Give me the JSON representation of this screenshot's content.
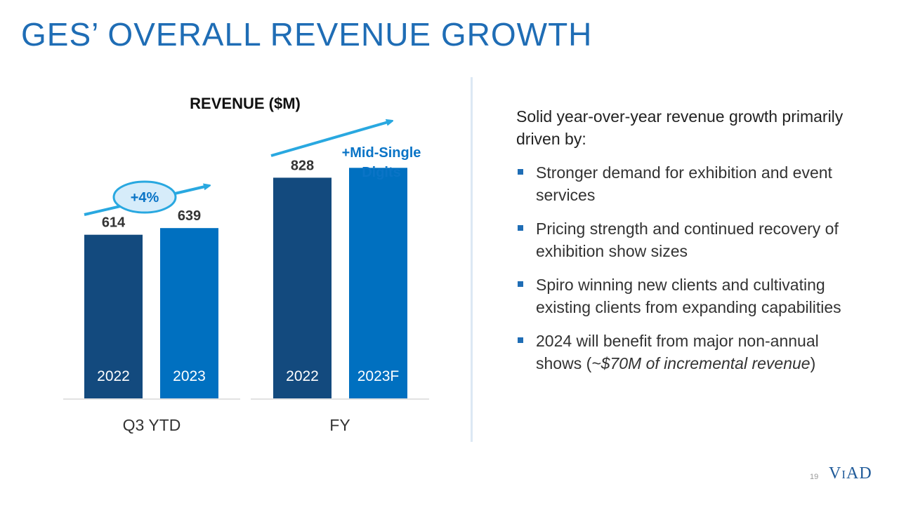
{
  "title": "GES’ OVERALL REVENUE GROWTH",
  "chart_data": {
    "type": "bar",
    "title": "REVENUE ($M)",
    "groups": [
      {
        "label": "Q3 YTD",
        "bars": [
          {
            "category": "2022",
            "value": 614,
            "value_label": "614",
            "color": "#134a7e"
          },
          {
            "category": "2023",
            "value": 639,
            "value_label": "639",
            "color": "#0070c0"
          }
        ],
        "growth_label": "+4%"
      },
      {
        "label": "FY",
        "bars": [
          {
            "category": "2022",
            "value": 828,
            "value_label": "828",
            "color": "#134a7e"
          },
          {
            "category": "2023F",
            "value": 865,
            "value_label": "",
            "color": "#0070c0"
          }
        ],
        "growth_label": [
          "+Mid-Single",
          "Digits"
        ]
      }
    ],
    "arrow_color": "#29a8e0",
    "ylim": [
      0,
      1000
    ],
    "grid": false
  },
  "commentary": {
    "intro": "Solid year-over-year revenue growth primarily driven by:",
    "bullets": [
      {
        "text": "Stronger demand for exhibition and event services"
      },
      {
        "text": "Pricing strength and continued recovery of exhibition show sizes"
      },
      {
        "text": "Spiro winning new clients and cultivating existing clients from expanding capabilities"
      },
      {
        "text": "2024 will benefit from major non-annual shows (",
        "italic": "~$70M of incremental revenue",
        "after": ")"
      }
    ]
  },
  "footer": {
    "page_number": "19",
    "logo_text": "VIAD"
  },
  "colors": {
    "title": "#1f6db5",
    "bar_dark": "#134a7e",
    "bar_light": "#0070c0",
    "arrow": "#29a8e0",
    "bullet": "#1f6db5"
  }
}
